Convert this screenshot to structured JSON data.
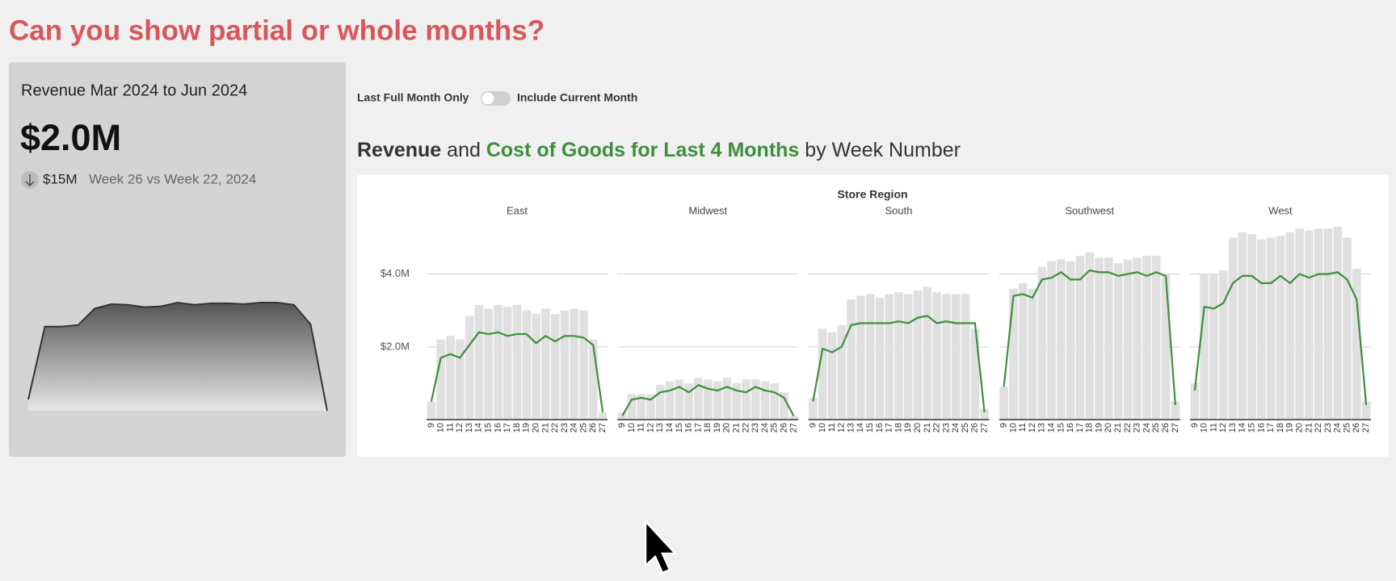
{
  "page_title": "Can you show partial or whole months?",
  "toggle": {
    "left": "Last Full Month Only",
    "right": "Include Current Month"
  },
  "chart_data": [
    {
      "type": "area",
      "title": "Revenue Mar 2024 to Jun 2024",
      "kpi_value": "$2.0M",
      "delta": "$15M",
      "comparison": "Week 26 vs Week 22, 2024",
      "color": "#333333",
      "values": [
        3.5,
        13.2,
        13.2,
        13.4,
        15.6,
        16.2,
        16.1,
        15.8,
        15.9,
        16.4,
        16.1,
        16.3,
        16.3,
        16.2,
        16.4,
        16.4,
        16.1,
        13.5,
        2.0
      ]
    },
    {
      "type": "faceted-bar-line",
      "title_connector": "and",
      "title_suffix": "by Week Number",
      "facet_label": "Store Region",
      "series": [
        {
          "name": "Revenue",
          "color": "#e0e0e0",
          "text_color": "#333333"
        },
        {
          "name": "Cost of Goods for Last 4 Months",
          "color": "#3d8f3d",
          "text_color": "#3d8f3d"
        }
      ],
      "categories": [
        9,
        10,
        11,
        12,
        13,
        14,
        15,
        16,
        17,
        18,
        19,
        20,
        21,
        22,
        23,
        24,
        25,
        26,
        27
      ],
      "ylim": [
        0,
        5.5
      ],
      "yticks": [
        {
          "value": 2,
          "label": "$2.0M"
        },
        {
          "value": 4,
          "label": "$4.0M"
        }
      ],
      "grid": true,
      "facets": [
        {
          "name": "East",
          "series_values": [
            [
              0.5,
              2.2,
              2.3,
              2.2,
              2.85,
              3.15,
              3.05,
              3.15,
              3.1,
              3.15,
              3.0,
              2.9,
              3.05,
              2.9,
              3.0,
              3.05,
              3.0,
              2.2,
              0.2
            ],
            [
              0.5,
              1.7,
              1.8,
              1.7,
              2.05,
              2.4,
              2.35,
              2.4,
              2.3,
              2.35,
              2.35,
              2.1,
              2.3,
              2.15,
              2.3,
              2.3,
              2.25,
              2.05,
              0.2
            ]
          ]
        },
        {
          "name": "Midwest",
          "series_values": [
            [
              0.2,
              0.7,
              0.7,
              0.7,
              0.95,
              1.05,
              1.1,
              1.0,
              1.15,
              1.1,
              1.05,
              1.15,
              1.0,
              1.1,
              1.1,
              1.05,
              1.0,
              0.75,
              0.1
            ],
            [
              0.1,
              0.55,
              0.6,
              0.55,
              0.75,
              0.8,
              0.9,
              0.75,
              0.95,
              0.85,
              0.8,
              0.9,
              0.8,
              0.75,
              0.9,
              0.8,
              0.75,
              0.6,
              0.1
            ]
          ]
        },
        {
          "name": "South",
          "series_values": [
            [
              0.6,
              2.5,
              2.4,
              2.6,
              3.3,
              3.4,
              3.45,
              3.35,
              3.45,
              3.5,
              3.45,
              3.55,
              3.65,
              3.5,
              3.45,
              3.45,
              3.45,
              2.5,
              0.3
            ],
            [
              0.5,
              1.95,
              1.85,
              2.0,
              2.6,
              2.65,
              2.65,
              2.65,
              2.65,
              2.7,
              2.65,
              2.8,
              2.85,
              2.65,
              2.7,
              2.65,
              2.65,
              2.65,
              0.2
            ]
          ]
        },
        {
          "name": "Southwest",
          "series_values": [
            [
              0.9,
              3.6,
              3.75,
              3.6,
              4.2,
              4.35,
              4.4,
              4.35,
              4.5,
              4.6,
              4.45,
              4.45,
              4.3,
              4.4,
              4.45,
              4.5,
              4.5,
              4.0,
              0.5
            ],
            [
              0.9,
              3.4,
              3.45,
              3.35,
              3.85,
              3.9,
              4.05,
              3.85,
              3.85,
              4.1,
              4.05,
              4.05,
              3.95,
              4.0,
              4.05,
              3.95,
              4.05,
              3.95,
              0.4
            ]
          ]
        },
        {
          "name": "West",
          "series_values": [
            [
              1.0,
              4.0,
              4.0,
              4.1,
              5.0,
              5.15,
              5.1,
              4.95,
              5.0,
              5.05,
              5.15,
              5.25,
              5.2,
              5.25,
              5.25,
              5.3,
              5.0,
              4.15,
              0.5
            ],
            [
              0.8,
              3.1,
              3.05,
              3.2,
              3.75,
              3.95,
              3.95,
              3.75,
              3.75,
              3.95,
              3.75,
              4.0,
              3.9,
              4.0,
              4.0,
              4.05,
              3.85,
              3.3,
              0.4
            ]
          ]
        }
      ]
    }
  ]
}
